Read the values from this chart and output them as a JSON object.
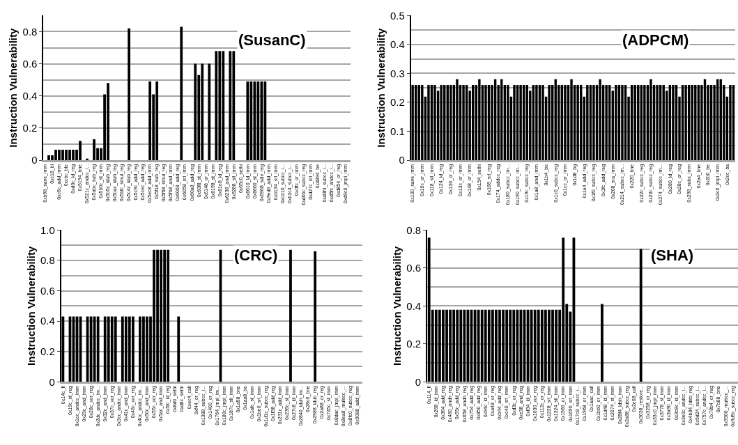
{
  "chart_data": [
    {
      "type": "bar",
      "title": "(SusanC)",
      "ylabel": "Instruction Vulnerability",
      "ylim": [
        0,
        0.9
      ],
      "yticks": [
        0,
        0.2,
        0.4,
        0.6,
        0.8
      ],
      "grid": "y",
      "categories": [
        "0xb98_save_imm",
        null,
        "0xc18_bl",
        null,
        "0xc6c_add_imm",
        null,
        "0xcbc_ble",
        null,
        "0xd0c_ld_reg",
        null,
        "0x5194_bne",
        null,
        "0x521c_andcc_i...",
        null,
        "0x5abc_sub_reg",
        null,
        "0x5b0c_st_imm",
        null,
        "0x5b5c_ldub_reg",
        null,
        "0x5bac_lduh_reg",
        null,
        "0x5bfc_smul_reg",
        null,
        "0x5c4c_ldub_reg",
        null,
        "0x5c9c_add_reg",
        null,
        "0x5cec_add_reg",
        null,
        "0x5ec8_add_imm",
        null,
        "0x5f18_sub_reg",
        null,
        "0x5f68_smul_reg",
        null,
        "0x5fb8_and_imm",
        null,
        "0x6008_add_reg",
        null,
        "0x6058_srl_imm",
        null,
        "0x60a8_add_reg",
        null,
        "0x60f8_st_imm",
        null,
        "0x6148_or_imm",
        null,
        "0x6198_st_imm",
        null,
        "0x61e8_ld_reg",
        null,
        "0x6238_and_imm",
        null,
        "0x6288_sll_imm",
        null,
        "0x65c0_sethi",
        null,
        "0x6610_ld_imm",
        null,
        "0x6660_st_imm",
        null,
        "0x6968_sdiv_reg",
        null,
        "0x9ed0_add_imm",
        null,
        "0xb134_srl_imm",
        null,
        "0xb210_subcc_i...",
        null,
        "0xb2c4_subcc_i...",
        null,
        "0xcffc_or_imm",
        null,
        "0xd0bc_subcc_reg",
        null,
        "0xd27c_srl_imm",
        null,
        "0xd394_be",
        null,
        "0xd3f4_subcc_i...",
        null,
        "0xd5fc_andcc_i...",
        null,
        "0xd854_or_reg",
        null,
        "0xd9c0_jmpl_imm",
        null
      ],
      "series": [
        {
          "color": "#000000",
          "values": [
            0,
            0.03,
            0.03,
            0.065,
            0.065,
            0.065,
            0.065,
            0.065,
            0.065,
            0.065,
            0.12,
            0,
            0.01,
            0,
            0.13,
            0.075,
            0.075,
            0.41,
            0.48,
            0,
            0,
            0,
            0,
            0,
            0.82,
            0,
            0,
            0,
            0,
            0,
            0.49,
            0.41,
            0.49,
            0,
            0,
            0,
            0,
            0,
            0,
            0.83,
            0,
            0,
            0,
            0.6,
            0.53,
            0.6,
            0,
            0.6,
            0,
            0.68,
            0.68,
            0.68,
            0,
            0.68,
            0.68,
            0,
            0,
            0,
            0.49,
            0.49,
            0.49,
            0.49,
            0.49,
            0.49,
            0,
            0,
            0,
            0,
            0,
            0,
            0,
            0,
            0,
            0,
            0,
            0,
            0,
            0,
            0,
            0,
            0,
            0,
            0,
            0,
            0,
            0,
            0,
            0
          ]
        }
      ]
    },
    {
      "type": "bar",
      "title": "(ADPCM)",
      "ylabel": "Instruction Vulnerability",
      "ylim": [
        0,
        0.5
      ],
      "yticks": [
        0,
        0.1,
        0.2,
        0.3,
        0.4,
        0.5
      ],
      "grid": "y",
      "categories": [
        "0x100_save_imm",
        null,
        null,
        "0x10c_or_imm",
        null,
        null,
        "0x118_sll_imm",
        null,
        null,
        "0x124_ld_reg",
        null,
        null,
        "0x130_or_reg",
        null,
        null,
        "0x13c_or_imm",
        null,
        null,
        "0x148_or_imm",
        null,
        null,
        "0x154_sethi",
        null,
        null,
        "0x168_srl_reg",
        null,
        null,
        "0x174_addcc_reg",
        null,
        null,
        "0x180_subcc_im...",
        null,
        null,
        "0x190_subcc_im...",
        null,
        null,
        "0x19c_subcc_reg",
        null,
        null,
        "0x1a8_and_imm",
        null,
        null,
        "0x1b4_be",
        null,
        null,
        "0x1c0_subcc_reg",
        null,
        null,
        "0x1cc_or_imm",
        null,
        null,
        "0x1d8_bg",
        null,
        null,
        "0x1e4_add_reg",
        null,
        null,
        "0x1f0_subcc_reg",
        null,
        null,
        "0x1fc_add_reg",
        null,
        null,
        "0x208_sra_imm",
        null,
        null,
        "0x214_subcc_im...",
        null,
        null,
        "0x220_bne",
        null,
        null,
        "0x22c_subcc_reg",
        null,
        null,
        "0x23c_subcc_reg",
        null,
        null,
        "0x274_subcc_im...",
        null,
        null,
        "0x280_ld_reg",
        null,
        null,
        "0x28c_or_reg",
        null,
        null,
        "0x298_subx_imm",
        null,
        null,
        "0x2a4_bne",
        null,
        null,
        "0x2b0_be",
        null,
        null,
        "0x2c0_jmpl_imm",
        null,
        null,
        "0x2cc_ba",
        null,
        null
      ],
      "series": [
        {
          "color": "#000000",
          "values": [
            0.26,
            0.26,
            0.26,
            0.26,
            0.22,
            0.26,
            0.26,
            0.26,
            0.24,
            0.26,
            0.26,
            0.26,
            0.26,
            0.26,
            0.28,
            0.26,
            0.26,
            0.26,
            0.24,
            0.26,
            0.26,
            0.28,
            0.26,
            0.26,
            0.26,
            0.26,
            0.28,
            0.26,
            0.28,
            0.26,
            0.26,
            0.22,
            0.26,
            0.26,
            0.26,
            0.26,
            0.26,
            0.24,
            0.26,
            0.26,
            0.26,
            0.26,
            0.22,
            0.26,
            0.26,
            0.28,
            0.26,
            0.26,
            0.26,
            0.26,
            0.28,
            0.26,
            0.26,
            0.26,
            0.22,
            0.26,
            0.26,
            0.26,
            0.26,
            0.28,
            0.26,
            0.26,
            0.26,
            0.24,
            0.26,
            0.26,
            0.26,
            0.26,
            0.22,
            0.26,
            0.26,
            0.26,
            0.26,
            0.26,
            0.26,
            0.28,
            0.26,
            0.26,
            0.26,
            0.26,
            0.24,
            0.26,
            0.26,
            0.26,
            0.22,
            0.26,
            0.26,
            0.26,
            0.26,
            0.26,
            0.26,
            0.26,
            0.28,
            0.26,
            0.26,
            0.26,
            0.28,
            0.28,
            0.26,
            0.22,
            0.26,
            0.26
          ]
        }
      ]
    },
    {
      "type": "bar",
      "title": "(CRC)",
      "ylabel": "Instruction Vulnerability",
      "ylim": [
        0,
        1.0
      ],
      "yticks": [
        0,
        0.2,
        0.4,
        0.6,
        0.8,
        {
          "value": 1.0,
          "label": "1.0"
        }
      ],
      "grid": "y",
      "categories": [
        "0x14c_fi",
        null,
        "0x19c_st_reg",
        null,
        "0x1ec_andcc_imm",
        null,
        "0x23c_and_imm",
        null,
        "0x28c_xor_reg",
        null,
        "0x2dc_andcc_im...",
        null,
        "0x32c_and_imm",
        null,
        "0x37c_xor_reg",
        null,
        "0x3cc_andcc_imm",
        null,
        "0x41c_and_imm",
        null,
        "0x46c_xor_reg",
        null,
        "0x4bc_andcc_im...",
        null,
        "0x50c_and_imm",
        null,
        "0x55c_xor_reg",
        null,
        "0x5ac_and_imm",
        null,
        "0x5fc_ld_reg",
        null,
        "0x8d0_sethi",
        null,
        "0xd8c_sethi",
        null,
        "0xec4_call",
        null,
        "0xf44_or_reg",
        null,
        "0x1388_subcc_i...",
        null,
        "0x1400_or_reg",
        null,
        "0x1764_jmpl_im...",
        null,
        "0x180c_jmpl_imm",
        null,
        "0x187c_sll_imm",
        null,
        "0x1a58_bne",
        null,
        "0x1aa8_be",
        null,
        "0x1afc_st_imm",
        null,
        "0x1be0_srl_imm",
        null,
        "0x1d1c_subcc_reg",
        null,
        "0x1f38_add_reg",
        null,
        "0x231c_add_imm",
        null,
        "0x236c_st_imm",
        null,
        "0x27c8_ld_imm",
        null,
        "0x2840_lduh_im...",
        null,
        "0x28c0_bne",
        null,
        "0x2988_ldub_reg",
        null,
        "0x2a88_or_reg",
        null,
        "0x745c_st_imm",
        null,
        "0x8dac_jmpl_imm",
        null,
        "0x8ea8_mulscc_...",
        null,
        "0x8fc0_subcc_reg",
        null,
        "0x9088_add_imm",
        null
      ],
      "series": [
        {
          "color": "#000000",
          "values": [
            0.43,
            0,
            0.43,
            0.43,
            0.43,
            0.43,
            0,
            0.43,
            0.43,
            0.43,
            0.43,
            0,
            0.43,
            0.43,
            0.43,
            0.43,
            0,
            0.43,
            0.43,
            0.43,
            0.43,
            0,
            0.43,
            0.43,
            0.43,
            0.43,
            0.87,
            0.87,
            0.87,
            0.87,
            0.87,
            0,
            0,
            0.43,
            0,
            0,
            0,
            0,
            0,
            0,
            0,
            0,
            0,
            0,
            0,
            0.87,
            0,
            0,
            0,
            0,
            0,
            0,
            0,
            0,
            0,
            0,
            0,
            0,
            0,
            0,
            0,
            0,
            0,
            0,
            0,
            0.87,
            0,
            0,
            0,
            0,
            0,
            0,
            0.86,
            0,
            0,
            0,
            0,
            0,
            0,
            0,
            0,
            0,
            0,
            0,
            0,
            0
          ]
        }
      ]
    },
    {
      "type": "bar",
      "title": "(SHA)",
      "ylabel": "Instruction Vulnerability",
      "ylim": [
        0,
        0.8
      ],
      "yticks": [
        0,
        0.2,
        0.4,
        0.6,
        0.8
      ],
      "grid": "y",
      "categories": [
        "0x114_fi",
        null,
        "0x268_ld_imm",
        null,
        "0x364_add_reg",
        null,
        "0x460_andn_reg",
        null,
        "0x55c_add_reg",
        null,
        "0x658_andn_reg",
        null,
        "0x754_add_reg",
        null,
        "0x850_add_reg",
        null,
        "0x94c_ld_imm",
        null,
        "0xa48_or_reg",
        null,
        "0xb44_add_reg",
        null,
        "0xc40_srl_imm",
        null,
        "0xd3c_or_reg",
        null,
        "0xe38_and_reg",
        null,
        "0xf34_ld_imm",
        null,
        "0x1030_xor_reg",
        null,
        "0x112c_or_reg",
        null,
        "0x1228_srl_imm",
        null,
        "0x1324_sll_imm",
        null,
        "0x1560_or_imm",
        null,
        "0x1690_srl_imm",
        null,
        "0x17c8_subcc_i...",
        null,
        "0x1968_or_imm",
        null,
        "0x1aac_call",
        null,
        "0x1bb0_or_imm",
        null,
        "0x1d48_ld_imm",
        null,
        "0x2074_st_imm",
        null,
        "0x28f4_ldsh_imm",
        null,
        "0x2a88_subcc_reg",
        null,
        "0x2e08_call",
        null,
        "0x3038_restore...",
        null,
        "0x3258_or_reg",
        null,
        "0x33c0_jmpl_imm",
        null,
        "0x3778_st_imm",
        null,
        "0x3a90_ld_imm",
        null,
        "0x3b9c_ld_imm",
        null,
        "0x3e0c_andcc_i...",
        null,
        "0x4b84_ldsb_reg",
        null,
        "0x5d24_subcc_i...",
        null,
        "0x757c_andcc_i...",
        null,
        "0x78b4_or_reg",
        null,
        "0x7b88_bne",
        null,
        "0x9300_mulscc_...",
        null,
        "0x9d9c_subcc_reg",
        null
      ],
      "series": [
        {
          "color": "#000000",
          "values": [
            0.76,
            0.38,
            0.38,
            0.38,
            0.38,
            0.38,
            0.38,
            0.38,
            0.38,
            0.38,
            0.38,
            0.38,
            0.38,
            0.38,
            0.38,
            0.38,
            0.38,
            0.38,
            0.38,
            0.38,
            0.38,
            0.38,
            0.38,
            0.38,
            0.38,
            0.38,
            0.38,
            0.38,
            0.38,
            0.38,
            0.38,
            0.38,
            0.38,
            0.38,
            0.38,
            0.38,
            0.38,
            0.38,
            0.76,
            0.41,
            0.37,
            0.76,
            0,
            0,
            0,
            0,
            0,
            0,
            0,
            0.41,
            0,
            0,
            0,
            0,
            0,
            0,
            0,
            0,
            0,
            0,
            0.7,
            0,
            0,
            0,
            0,
            0,
            0,
            0,
            0,
            0,
            0,
            0,
            0,
            0,
            0,
            0,
            0,
            0,
            0,
            0,
            0,
            0,
            0,
            0,
            0,
            0,
            0,
            0
          ]
        }
      ]
    }
  ]
}
